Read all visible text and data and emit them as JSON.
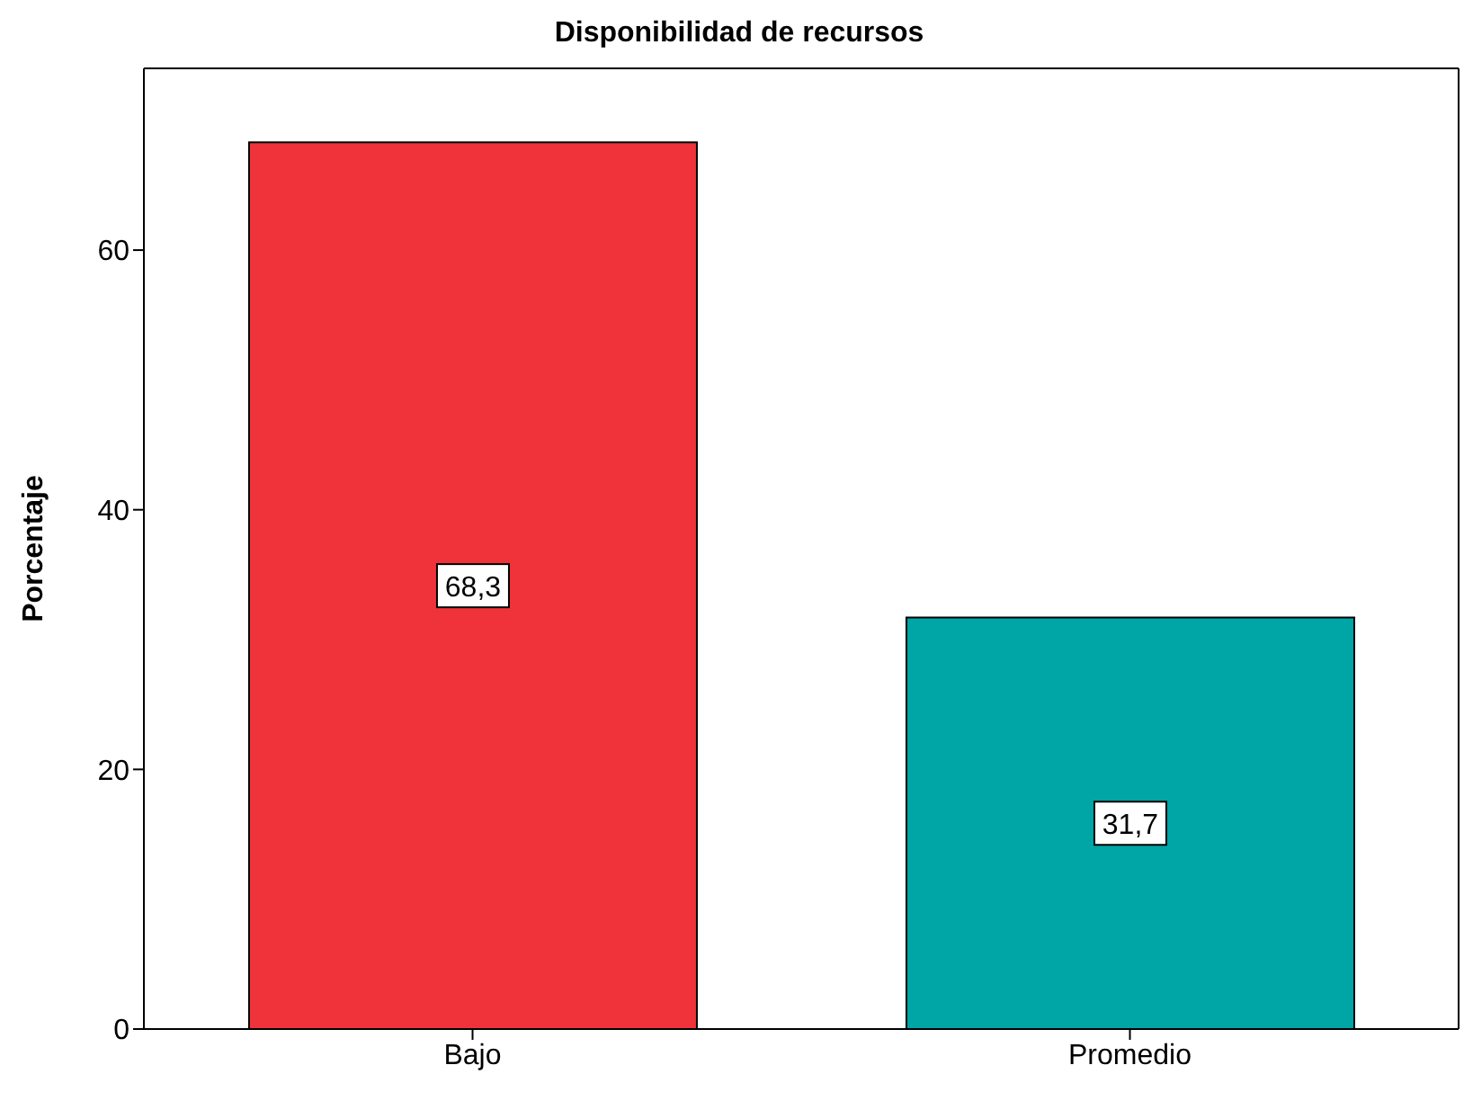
{
  "chart_data": {
    "type": "bar",
    "title": "Disponibilidad de recursos",
    "ylabel": "Porcentaje",
    "categories": [
      "Bajo",
      "Promedio"
    ],
    "values": [
      68.3,
      31.7
    ],
    "colors": [
      "#f0333a",
      "#00a5a5"
    ],
    "value_labels": [
      "68,3",
      "31,7"
    ],
    "ylim": [
      0,
      74
    ],
    "yticks": [
      0,
      20,
      40,
      60
    ],
    "grid": false,
    "legend": false
  }
}
